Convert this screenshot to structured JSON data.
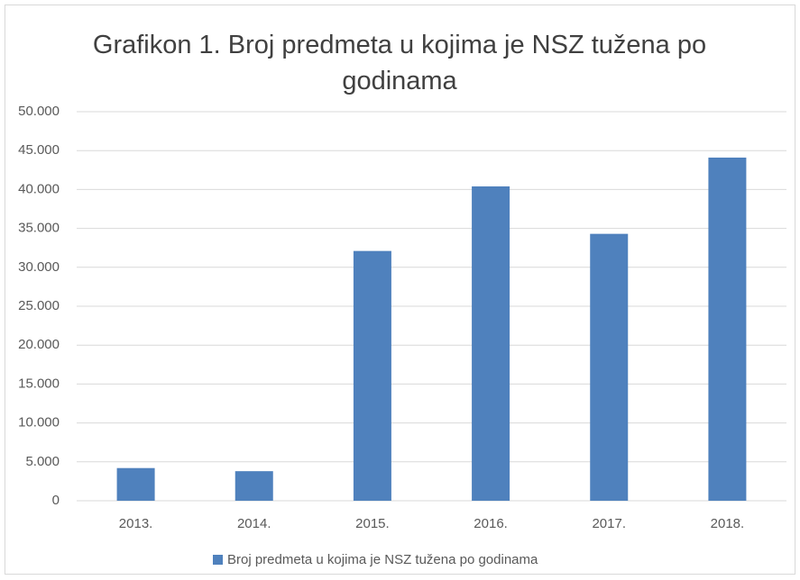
{
  "chart_data": {
    "type": "bar",
    "title": "Grafikon 1. Broj predmeta u kojima je NSZ tužena po godinama",
    "categories": [
      "2013.",
      "2014.",
      "2015.",
      "2016.",
      "2017.",
      "2018."
    ],
    "series": [
      {
        "name": "Broj predmeta u kojima je NSZ tužena po godinama",
        "color": "#4f81bd",
        "values": [
          4200,
          3800,
          32100,
          40400,
          34300,
          44100
        ]
      }
    ],
    "ylim": [
      0,
      50000
    ],
    "yticks": [
      0,
      {
        "value": 5000,
        "label": "5.000"
      },
      {
        "value": 10000,
        "label": "10.000"
      },
      {
        "value": 15000,
        "label": "15.000"
      },
      {
        "value": 20000,
        "label": "20.000"
      },
      {
        "value": 25000,
        "label": "25.000"
      },
      {
        "value": 30000,
        "label": "30.000"
      },
      {
        "value": 35000,
        "label": "35.000"
      },
      {
        "value": 40000,
        "label": "40.000"
      },
      {
        "value": 45000,
        "label": "45.000"
      },
      {
        "value": 50000,
        "label": "50.000"
      }
    ],
    "grid": true,
    "legend": "bottom"
  }
}
